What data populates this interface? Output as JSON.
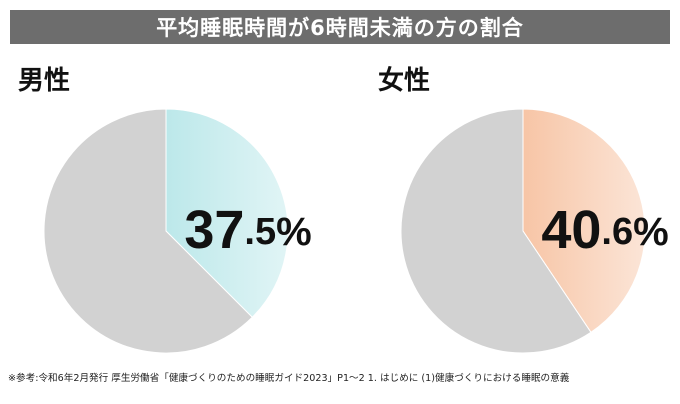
{
  "title": "平均睡眠時間が6時間未満の方の割合",
  "footnote": "※参考:令和6年2月発行 厚生労働省「健康づくりのための睡眠ガイド2023」P1〜2 1. はじめに (1)健康づくりにおける睡眠の意義",
  "chart_data": [
    {
      "type": "pie",
      "title": "男性",
      "slices": [
        {
          "label": "37.5%",
          "value": 37.5,
          "color": "#bce8ea"
        },
        {
          "label": "",
          "value": 62.5,
          "color": "#d2d2d2"
        }
      ],
      "start_angle": "12 o'clock, clockwise"
    },
    {
      "type": "pie",
      "title": "女性",
      "slices": [
        {
          "label": "40.6%",
          "value": 40.6,
          "color": "#f7c5a6"
        },
        {
          "label": "",
          "value": 59.4,
          "color": "#d2d2d2"
        }
      ],
      "start_angle": "12 o'clock, clockwise"
    }
  ]
}
